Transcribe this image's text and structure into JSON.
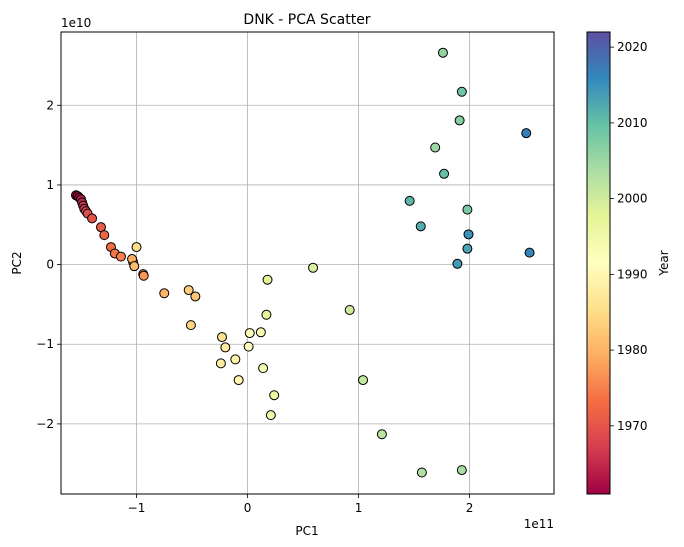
{
  "chart_data": {
    "type": "scatter",
    "title": "DNK - PCA Scatter",
    "xlabel": "PC1",
    "ylabel": "PC2",
    "x_scale_label": "1e11",
    "y_scale_label": "1e10",
    "xlim": [
      -1.68,
      2.76
    ],
    "ylim": [
      -2.88,
      2.92
    ],
    "x_ticks": [
      -1,
      0,
      1,
      2
    ],
    "x_tick_labels": [
      "−1",
      "0",
      "1",
      "2"
    ],
    "y_ticks": [
      -2,
      -1,
      0,
      1,
      2
    ],
    "y_tick_labels": [
      "−2",
      "−1",
      "0",
      "1",
      "2"
    ],
    "grid": true,
    "colorbar": {
      "label": "Year",
      "colormap": "Spectral",
      "range": [
        1961,
        2022
      ],
      "ticks": [
        1970,
        1980,
        1990,
        2000,
        2010,
        2020
      ],
      "tick_labels": [
        "1970",
        "1980",
        "1990",
        "2000",
        "2010",
        "2020"
      ]
    },
    "points": [
      {
        "year": 1961,
        "x": -1.545,
        "y": 0.87
      },
      {
        "year": 1962,
        "x": -1.53,
        "y": 0.86
      },
      {
        "year": 1963,
        "x": -1.515,
        "y": 0.84
      },
      {
        "year": 1964,
        "x": -1.5,
        "y": 0.82
      },
      {
        "year": 1965,
        "x": -1.49,
        "y": 0.78
      },
      {
        "year": 1966,
        "x": -1.48,
        "y": 0.74
      },
      {
        "year": 1967,
        "x": -1.47,
        "y": 0.7
      },
      {
        "year": 1968,
        "x": -1.455,
        "y": 0.67
      },
      {
        "year": 1969,
        "x": -1.44,
        "y": 0.64
      },
      {
        "year": 1970,
        "x": -1.4,
        "y": 0.58
      },
      {
        "year": 1971,
        "x": -1.32,
        "y": 0.47
      },
      {
        "year": 1972,
        "x": -1.29,
        "y": 0.37
      },
      {
        "year": 1973,
        "x": -1.23,
        "y": 0.22
      },
      {
        "year": 1974,
        "x": -1.195,
        "y": 0.14
      },
      {
        "year": 1975,
        "x": -1.14,
        "y": 0.1
      },
      {
        "year": 1976,
        "x": -0.94,
        "y": -0.12
      },
      {
        "year": 1977,
        "x": -0.935,
        "y": -0.14
      },
      {
        "year": 1978,
        "x": -1.03,
        "y": 0.03
      },
      {
        "year": 1979,
        "x": -1.04,
        "y": 0.07
      },
      {
        "year": 1980,
        "x": -0.75,
        "y": -0.36
      },
      {
        "year": 1981,
        "x": -1.02,
        "y": -0.02
      },
      {
        "year": 1982,
        "x": -0.47,
        "y": -0.4
      },
      {
        "year": 1983,
        "x": -0.53,
        "y": -0.32
      },
      {
        "year": 1984,
        "x": -0.51,
        "y": -0.76
      },
      {
        "year": 1985,
        "x": -1.0,
        "y": 0.22
      },
      {
        "year": 1986,
        "x": -0.23,
        "y": -0.91
      },
      {
        "year": 1987,
        "x": -0.2,
        "y": -1.04
      },
      {
        "year": 1988,
        "x": -0.24,
        "y": -1.24
      },
      {
        "year": 1989,
        "x": -0.11,
        "y": -1.19
      },
      {
        "year": 1990,
        "x": -0.08,
        "y": -1.45
      },
      {
        "year": 1991,
        "x": 0.01,
        "y": -1.03
      },
      {
        "year": 1992,
        "x": 0.02,
        "y": -0.86
      },
      {
        "year": 1993,
        "x": 0.12,
        "y": -0.85
      },
      {
        "year": 1994,
        "x": 0.14,
        "y": -1.3
      },
      {
        "year": 1995,
        "x": 0.21,
        "y": -1.89
      },
      {
        "year": 1996,
        "x": 0.24,
        "y": -1.64
      },
      {
        "year": 1997,
        "x": 0.17,
        "y": -0.63
      },
      {
        "year": 1998,
        "x": 0.18,
        "y": -0.19
      },
      {
        "year": 1999,
        "x": 0.59,
        "y": -0.04
      },
      {
        "year": 2000,
        "x": 0.92,
        "y": -0.57
      },
      {
        "year": 2001,
        "x": 1.04,
        "y": -1.45
      },
      {
        "year": 2002,
        "x": 1.21,
        "y": -2.13
      },
      {
        "year": 2003,
        "x": 1.57,
        "y": -2.61
      },
      {
        "year": 2004,
        "x": 1.93,
        "y": -2.58
      },
      {
        "year": 2005,
        "x": 1.69,
        "y": 1.47
      },
      {
        "year": 2006,
        "x": 1.76,
        "y": 2.66
      },
      {
        "year": 2007,
        "x": 1.91,
        "y": 1.81
      },
      {
        "year": 2008,
        "x": 1.98,
        "y": 0.69
      },
      {
        "year": 2009,
        "x": 1.93,
        "y": 2.17
      },
      {
        "year": 2010,
        "x": 1.77,
        "y": 1.14
      },
      {
        "year": 2011,
        "x": 1.46,
        "y": 0.8
      },
      {
        "year": 2012,
        "x": 1.56,
        "y": 0.48
      },
      {
        "year": 2013,
        "x": 1.98,
        "y": 0.2
      },
      {
        "year": 2014,
        "x": 1.89,
        "y": 0.01
      },
      {
        "year": 2015,
        "x": 1.99,
        "y": 0.38
      },
      {
        "year": 2016,
        "x": 2.54,
        "y": 0.15
      },
      {
        "year": 2017,
        "x": 2.51,
        "y": 1.65
      }
    ]
  }
}
